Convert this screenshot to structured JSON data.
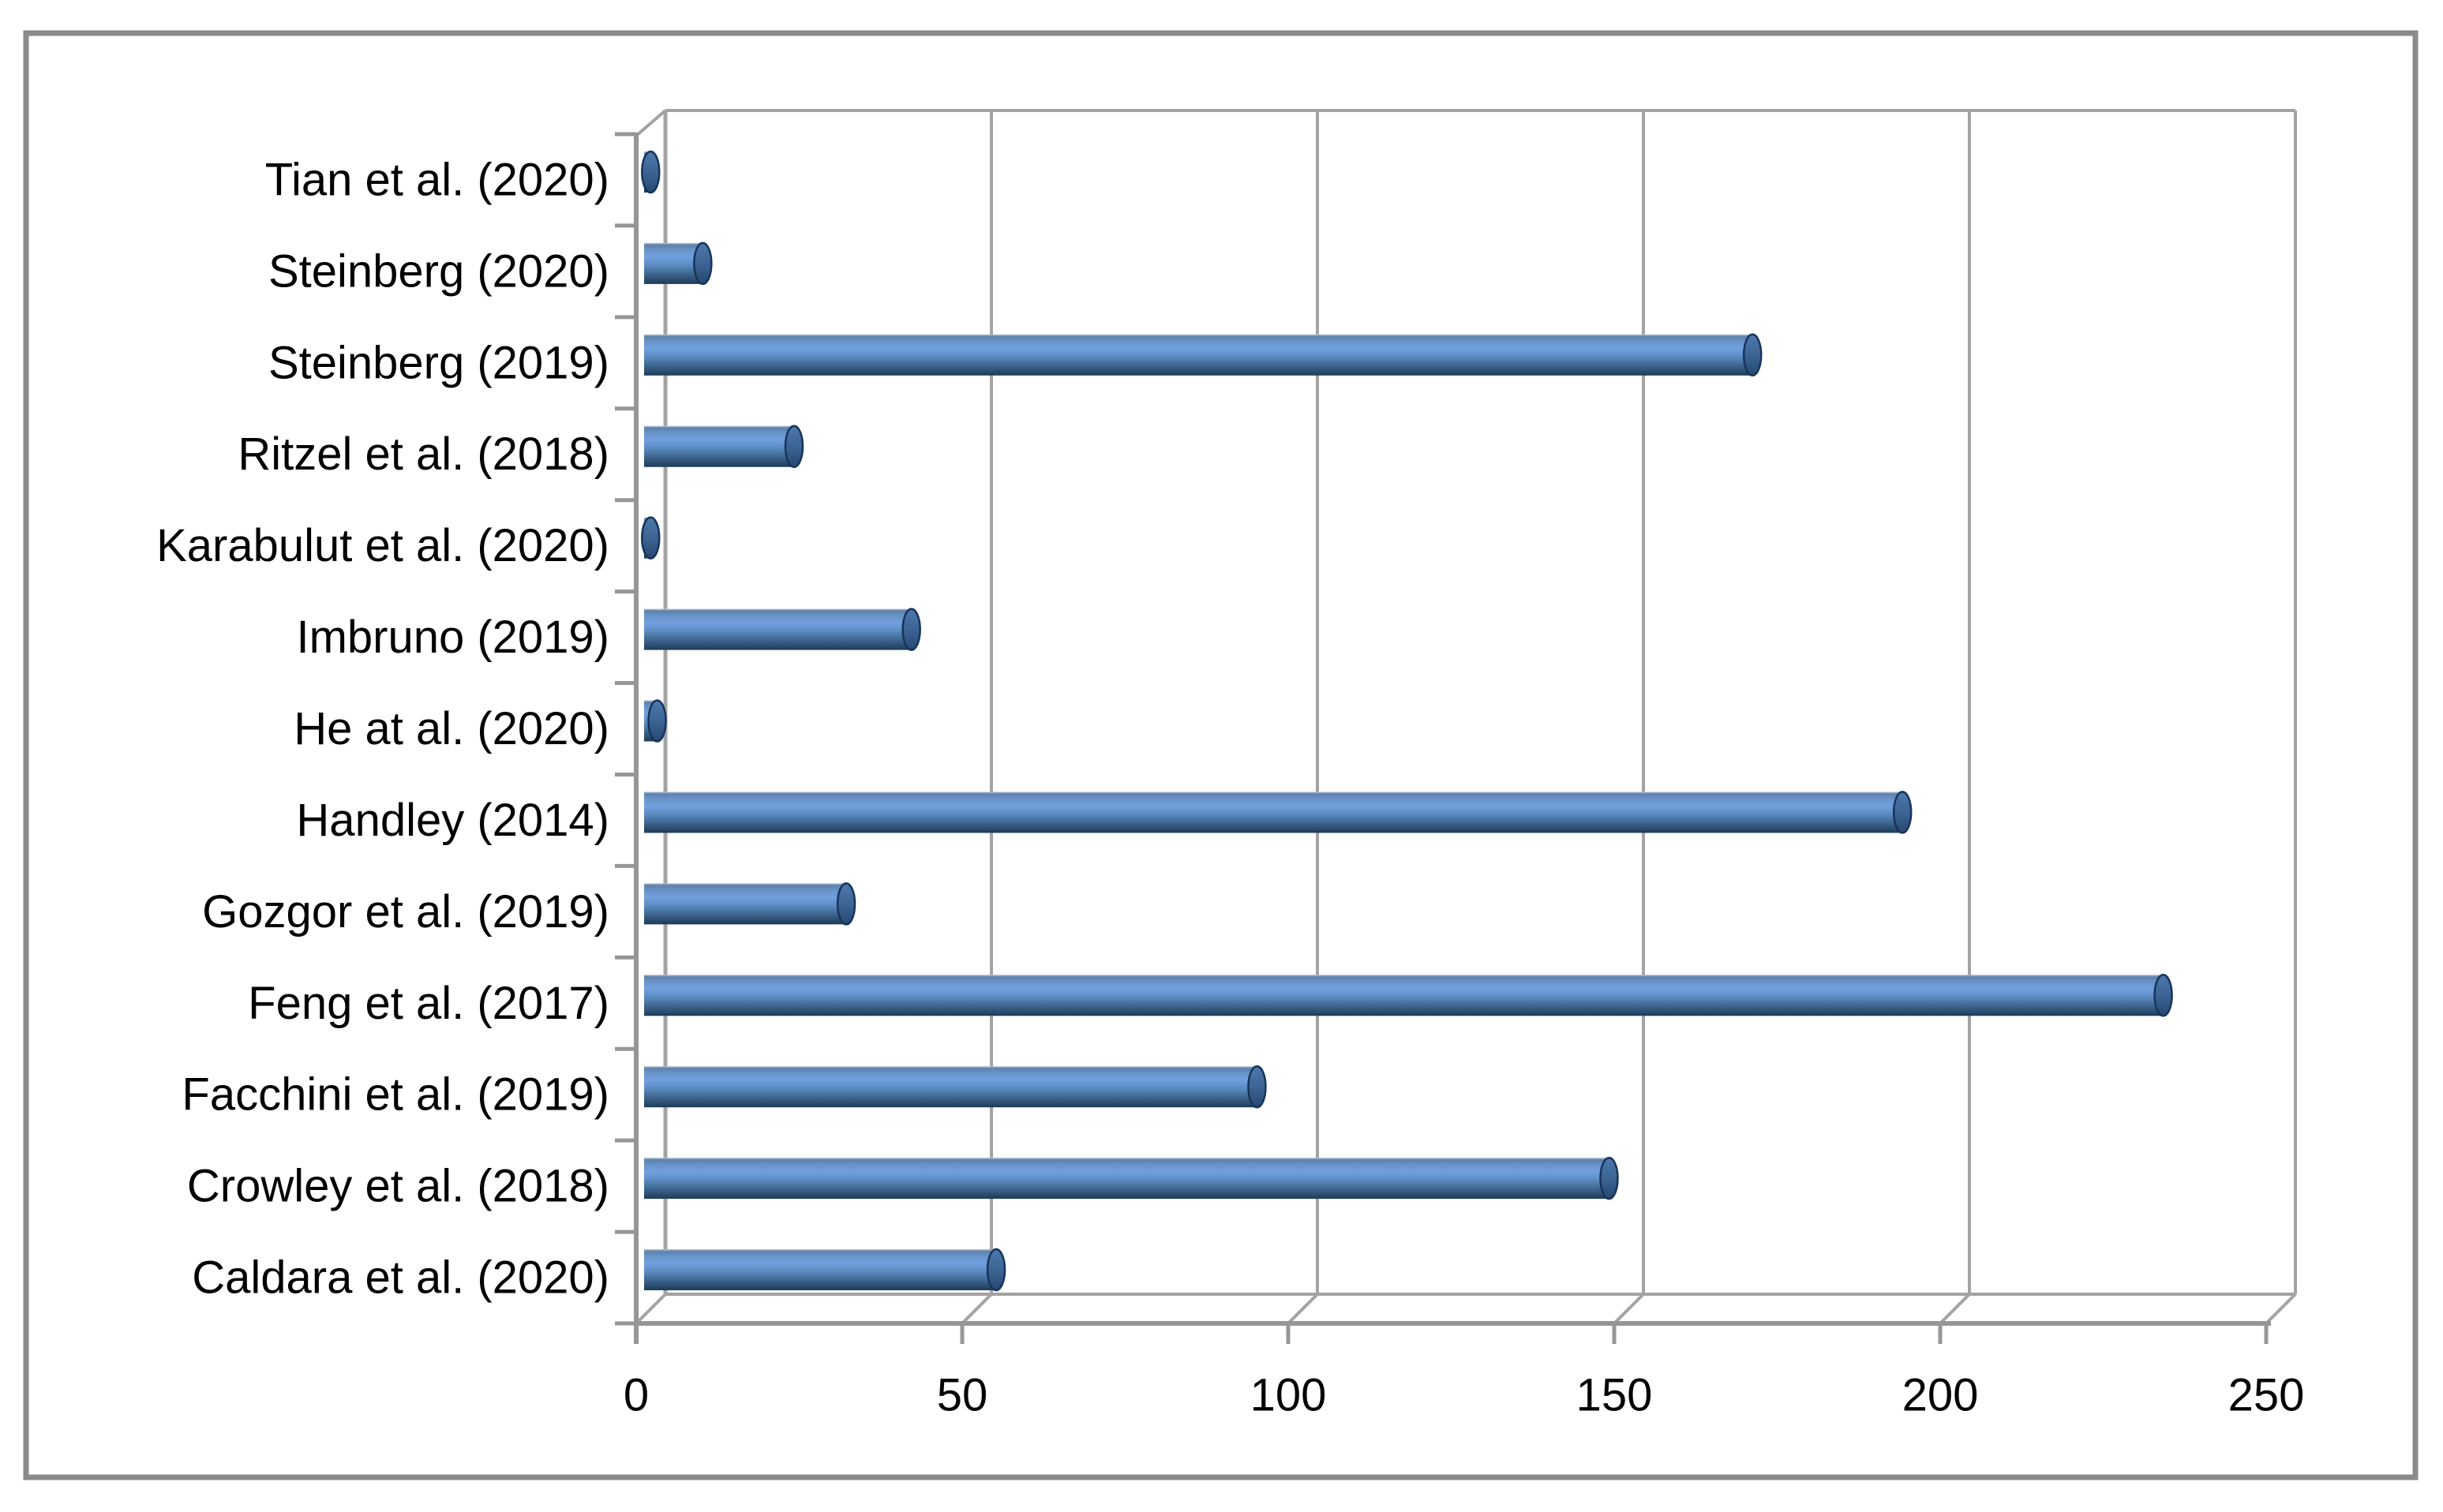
{
  "chart_data": {
    "type": "bar",
    "orientation": "horizontal",
    "style": "3d-cylinder",
    "title": "",
    "xlabel": "",
    "ylabel": "",
    "legend": "none",
    "grid": "vertical major gridlines every 50, on back wall",
    "categories": [
      "Tian et al. (2020)",
      "Steinberg (2020)",
      "Steinberg (2019)",
      "Ritzel et al. (2018)",
      "Karabulut et al. (2020)",
      "Imbruno (2019)",
      "He at al. (2020)",
      "Handley (2014)",
      "Gozgor et al. (2019)",
      "Feng et al. (2017)",
      "Facchini et al. (2019)",
      "Crowley et al. (2018)",
      "Caldara et al. (2020)"
    ],
    "values": [
      1,
      9,
      170,
      23,
      1,
      41,
      2,
      193,
      31,
      233,
      94,
      148,
      54
    ],
    "x_ticks": [
      0,
      50,
      100,
      150,
      200,
      250
    ],
    "xlim": [
      0,
      250
    ],
    "bar_color": "#4f81bd",
    "bar_cap_color": "#3a6292",
    "gridline_color": "#a3a3a3",
    "axis_color": "#969696",
    "text_color": "#000000",
    "frame_color": "#8a8a8a",
    "background": "#ffffff"
  }
}
